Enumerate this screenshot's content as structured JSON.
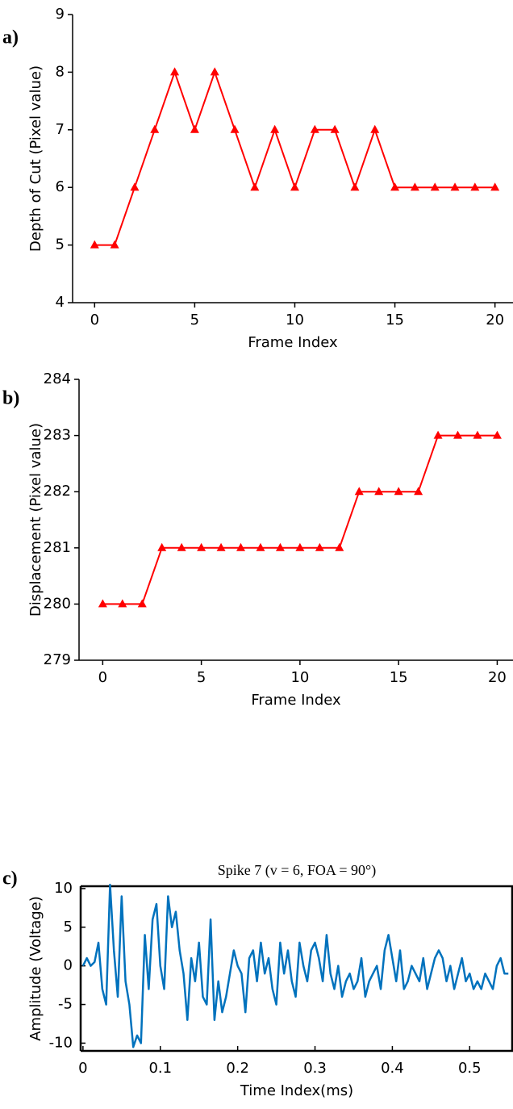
{
  "chart_data": [
    {
      "type": "line",
      "panel_label": "a)",
      "xlabel": "Frame Index",
      "ylabel": "Depth of Cut (Pixel value)",
      "x": [
        0,
        1,
        2,
        3,
        4,
        5,
        6,
        7,
        8,
        9,
        10,
        11,
        12,
        13,
        14,
        15,
        16,
        17,
        18,
        19,
        20
      ],
      "series": [
        {
          "color": "#ff0000",
          "marker": "triangle",
          "values": [
            5,
            5,
            6,
            7,
            8,
            7,
            8,
            7,
            6,
            7,
            6,
            7,
            7,
            6,
            7,
            6,
            6,
            6,
            6,
            6,
            6
          ]
        }
      ],
      "xlim": [
        -1.1,
        20.9
      ],
      "xticks": [
        0,
        5,
        10,
        15,
        20
      ],
      "ylim": [
        4,
        9
      ],
      "yticks": [
        4,
        5,
        6,
        7,
        8,
        9
      ]
    },
    {
      "type": "line",
      "panel_label": "b)",
      "xlabel": "Frame Index",
      "ylabel": "Displacement (Pixel value)",
      "x": [
        0,
        1,
        2,
        3,
        4,
        5,
        6,
        7,
        8,
        9,
        10,
        11,
        12,
        13,
        14,
        15,
        16,
        17,
        18,
        19,
        20
      ],
      "series": [
        {
          "color": "#ff0000",
          "marker": "triangle",
          "values": [
            280,
            280,
            280,
            281,
            281,
            281,
            281,
            281,
            281,
            281,
            281,
            281,
            281,
            282,
            282,
            282,
            282,
            283,
            283,
            283,
            283
          ]
        }
      ],
      "xlim": [
        -1.2,
        20.8
      ],
      "xticks": [
        0,
        5,
        10,
        15,
        20
      ],
      "ylim": [
        279,
        284
      ],
      "yticks": [
        279,
        280,
        281,
        282,
        283,
        284
      ]
    },
    {
      "type": "line",
      "panel_label": "c)",
      "title": "Spike 7 (v = 6, FOA = 90°)",
      "xlabel": "Time Index(ms)",
      "ylabel": "Amplitude (Voltage)",
      "frame": true,
      "x": [
        0,
        0.005,
        0.01,
        0.015,
        0.02,
        0.025,
        0.03,
        0.035,
        0.04,
        0.045,
        0.05,
        0.055,
        0.06,
        0.065,
        0.07,
        0.075,
        0.08,
        0.085,
        0.09,
        0.095,
        0.1,
        0.105,
        0.11,
        0.115,
        0.12,
        0.125,
        0.13,
        0.135,
        0.14,
        0.145,
        0.15,
        0.155,
        0.16,
        0.165,
        0.17,
        0.175,
        0.18,
        0.185,
        0.19,
        0.195,
        0.2,
        0.205,
        0.21,
        0.215,
        0.22,
        0.225,
        0.23,
        0.235,
        0.24,
        0.245,
        0.25,
        0.255,
        0.26,
        0.265,
        0.27,
        0.275,
        0.28,
        0.285,
        0.29,
        0.295,
        0.3,
        0.305,
        0.31,
        0.315,
        0.32,
        0.325,
        0.33,
        0.335,
        0.34,
        0.345,
        0.35,
        0.355,
        0.36,
        0.365,
        0.37,
        0.375,
        0.38,
        0.385,
        0.39,
        0.395,
        0.4,
        0.405,
        0.41,
        0.415,
        0.42,
        0.425,
        0.43,
        0.435,
        0.44,
        0.445,
        0.45,
        0.455,
        0.46,
        0.465,
        0.47,
        0.475,
        0.48,
        0.485,
        0.49,
        0.495,
        0.5,
        0.505,
        0.51,
        0.515,
        0.52,
        0.525,
        0.53,
        0.535,
        0.54,
        0.545,
        0.55
      ],
      "series": [
        {
          "color": "#0072bd",
          "values": [
            0,
            1,
            0,
            0.5,
            3,
            -3,
            -5,
            10.5,
            2,
            -4,
            9,
            -2,
            -5,
            -10.5,
            -9,
            -10,
            4,
            -3,
            6,
            8,
            0,
            -3,
            9,
            5,
            7,
            2,
            -1,
            -7,
            1,
            -2,
            3,
            -4,
            -5,
            6,
            -7,
            -2,
            -6,
            -4,
            -1,
            2,
            0,
            -1,
            -6,
            1,
            2,
            -2,
            3,
            -1,
            1,
            -3,
            -5,
            3,
            -1,
            2,
            -2,
            -4,
            3,
            0,
            -2,
            2,
            3,
            1,
            -2,
            4,
            -1,
            -3,
            0,
            -4,
            -2,
            -1,
            -3,
            -2,
            1,
            -4,
            -2,
            -1,
            0,
            -3,
            2,
            4,
            1,
            -2,
            2,
            -3,
            -2,
            0,
            -1,
            -2,
            1,
            -3,
            -1,
            1,
            2,
            1,
            -2,
            0,
            -3,
            -1,
            1,
            -2,
            -1,
            -3,
            -2,
            -3,
            -1,
            -2,
            -3,
            0,
            1,
            -1,
            -1
          ]
        }
      ],
      "xlim": [
        -0.003,
        0.556
      ],
      "xticks": [
        0,
        0.1,
        0.2,
        0.3,
        0.4,
        0.5
      ],
      "ylim": [
        -11,
        10.3
      ],
      "yticks": [
        -10,
        -5,
        0,
        5,
        10
      ]
    }
  ]
}
